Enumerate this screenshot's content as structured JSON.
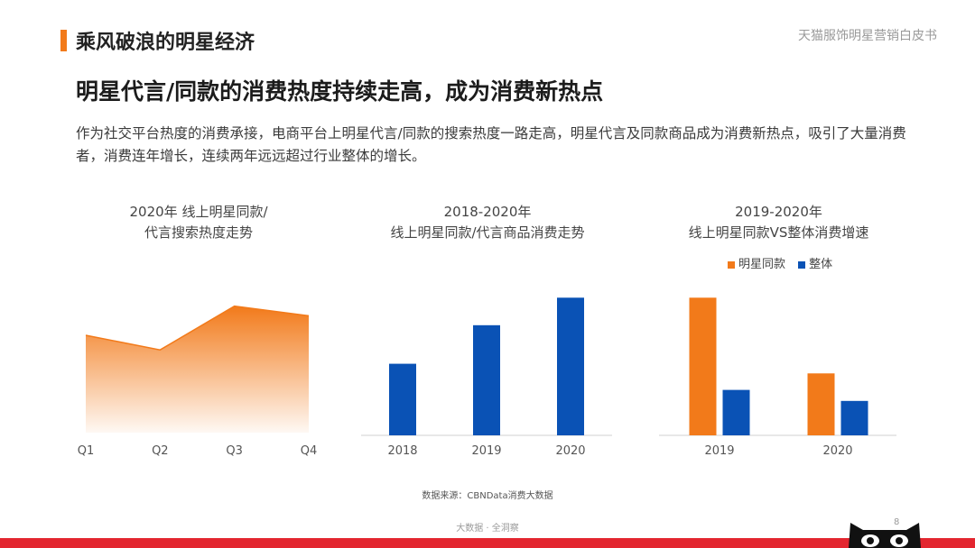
{
  "header": {
    "section_title": "乘风破浪的明星经济",
    "report_name": "天猫服饰明星营销白皮书"
  },
  "headline": "明星代言/同款的消费热度持续走高，成为消费新热点",
  "intro": "作为社交平台热度的消费承接，电商平台上明星代言/同款的搜索热度一路走高，明星代言及同款商品成为消费新热点，吸引了大量消费者，消费连年增长，连续两年远远超过行业整体的增长。",
  "colors": {
    "accent": "#f27a1a",
    "blue": "#0a52b5",
    "red_band": "#e3262f"
  },
  "chart_data": [
    {
      "type": "area",
      "title_line1": "2020年 线上明星同款/",
      "title_line2": "代言搜索热度走势",
      "categories": [
        "Q1",
        "Q2",
        "Q3",
        "Q4"
      ],
      "values": [
        60,
        51,
        78,
        72
      ],
      "ylim": [
        0,
        100
      ],
      "color": "#f27a1a",
      "grid": false
    },
    {
      "type": "bar",
      "title_line1": "2018-2020年",
      "title_line2": "线上明星同款/代言商品消费走势",
      "categories": [
        "2018",
        "2019",
        "2020"
      ],
      "values": [
        52,
        80,
        100
      ],
      "ylim": [
        0,
        110
      ],
      "color": "#0a52b5",
      "grid": false
    },
    {
      "type": "bar",
      "title_line1": "2019-2020年",
      "title_line2": "线上明星同款VS整体消费增速",
      "categories": [
        "2019",
        "2020"
      ],
      "series": [
        {
          "name": "明星同款",
          "values": [
            100,
            45
          ],
          "color": "#f27a1a"
        },
        {
          "name": "整体",
          "values": [
            33,
            25
          ],
          "color": "#0a52b5"
        }
      ],
      "ylim": [
        0,
        110
      ],
      "legend_position": "top",
      "grid": false
    }
  ],
  "source": "数据来源：CBNData消费大数据",
  "footer": {
    "text": "大数据 · 全洞察",
    "page": "8"
  }
}
